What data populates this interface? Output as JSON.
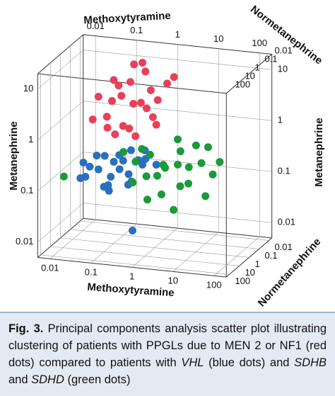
{
  "chart_data": {
    "type": "scatter3d",
    "x_label": "Methoxytyramine",
    "y_label": "Metanephrine",
    "z_label": "Normetanephrine",
    "log_scale": true,
    "grid": true,
    "xlim": [
      0.005,
      200
    ],
    "ylim": [
      0.005,
      20
    ],
    "zlim": [
      0.005,
      200
    ],
    "xticks": [
      0.01,
      0.1,
      1,
      10,
      100
    ],
    "yticks": [
      0.01,
      0.1,
      1,
      10
    ],
    "zticks": [
      0.01,
      0.1,
      1,
      10,
      100
    ],
    "series": [
      {
        "color": "#e8405a",
        "x": [
          0.1,
          0.3,
          0.5,
          0.2,
          0.8,
          0.05,
          1.5,
          0.3,
          0.1,
          0.6,
          0.04,
          0.2,
          0.9,
          0.15,
          0.4,
          0.07,
          1,
          2,
          0.25,
          0.6,
          0.12,
          0.35,
          1.2,
          0.08,
          0.5
        ],
        "y": [
          8,
          9,
          12,
          5,
          6,
          4,
          7,
          3,
          2,
          2.5,
          1.5,
          1.2,
          1.8,
          0.9,
          0.8,
          0.9,
          3.5,
          9,
          15,
          4,
          6,
          1.3,
          1.4,
          2.8,
          20
        ],
        "z": [
          1,
          2,
          0.5,
          3,
          1,
          2,
          0.3,
          1,
          5,
          0.8,
          3,
          2,
          1,
          4,
          2,
          1,
          0.5,
          0.2,
          0.4,
          3,
          0.7,
          5,
          1.5,
          0.6,
          1
        ]
      },
      {
        "color": "#2a6fc0",
        "x": [
          0.02,
          0.05,
          0.1,
          0.03,
          0.2,
          0.08,
          0.15,
          0.3,
          0.5,
          0.04,
          0.12,
          0.25,
          0.06,
          0.4,
          0.7,
          0.09,
          0.18,
          0.35,
          0.02,
          0.6,
          0.13,
          0.28,
          0.05,
          1,
          0.5
        ],
        "y": [
          0.1,
          0.15,
          0.2,
          0.12,
          0.25,
          0.08,
          0.3,
          0.15,
          0.2,
          0.2,
          0.1,
          0.35,
          0.25,
          0.12,
          0.3,
          0.06,
          0.18,
          0.22,
          0.18,
          0.4,
          0.14,
          0.09,
          0.3,
          0.2,
          0.015
        ],
        "z": [
          3,
          2,
          1,
          5,
          2,
          4,
          1.5,
          3,
          1,
          6,
          8,
          0.8,
          1,
          5,
          2,
          2,
          3,
          0.6,
          1.5,
          1.2,
          6,
          2.5,
          3,
          0.7,
          10
        ]
      },
      {
        "color": "#1a9a3a",
        "x": [
          0.01,
          0.5,
          1,
          2,
          5,
          10,
          20,
          50,
          3,
          8,
          0.8,
          1.5,
          15,
          30,
          4,
          0.6,
          6,
          12,
          2.5,
          40,
          0.3,
          7,
          25,
          1.2,
          3.5
        ],
        "y": [
          0.12,
          0.3,
          0.4,
          0.2,
          0.5,
          0.3,
          0.6,
          0.4,
          0.1,
          0.15,
          0.6,
          0.08,
          0.2,
          0.1,
          0.8,
          0.15,
          0.35,
          0.7,
          0.25,
          0.25,
          0.5,
          0.06,
          0.45,
          0.2,
          0.4
        ],
        "z": [
          8,
          5,
          3,
          10,
          2,
          5,
          1,
          3,
          20,
          15,
          8,
          30,
          30,
          10,
          1.5,
          20,
          8,
          2,
          4,
          6,
          10,
          40,
          12,
          15,
          25
        ]
      }
    ]
  },
  "caption": {
    "label": "Fig. 3.",
    "parts": [
      "Principal components analysis scatter plot illustrating clustering of patients with PPGLs due to MEN 2 or NF1 (red dots) compared to patients with ",
      "VHL",
      " (blue dots) and ",
      "SDHB",
      " and ",
      "SDHD",
      " (green dots)"
    ]
  }
}
